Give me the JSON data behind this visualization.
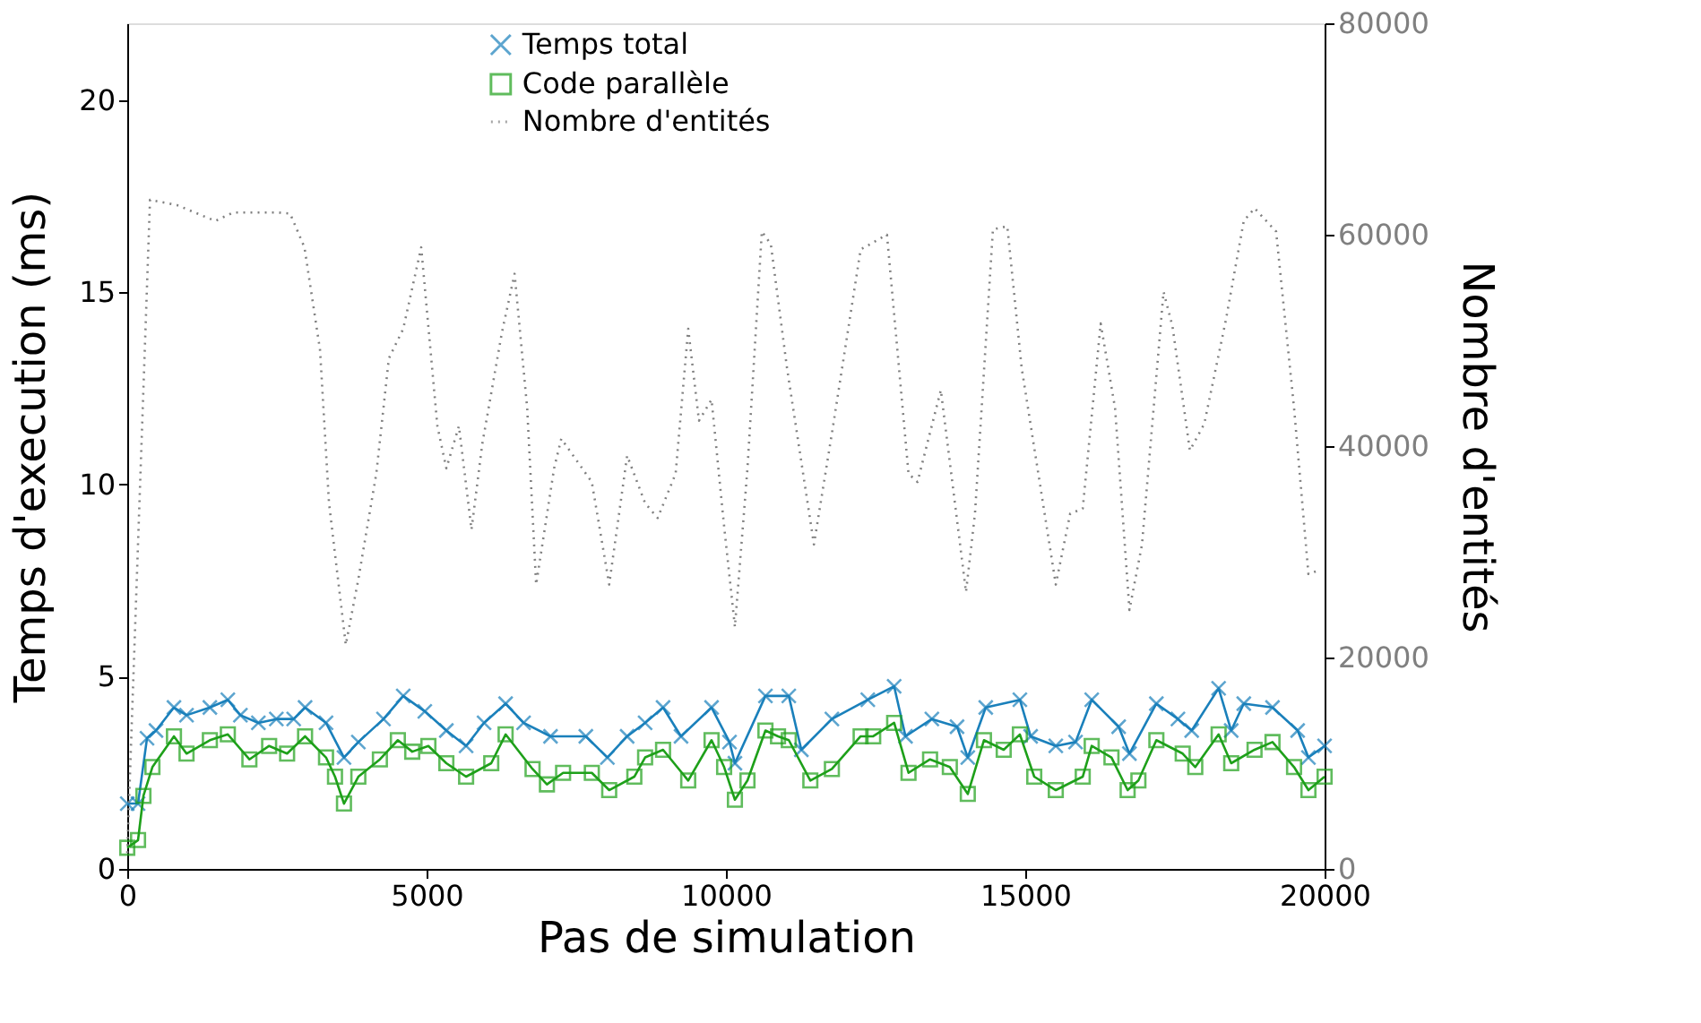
{
  "chart_data": {
    "type": "line",
    "xlabel": "Pas de simulation",
    "ylabel": "Temps d'execution (ms)",
    "y2label": "Nombre d'entités",
    "xlim": [
      0,
      20000
    ],
    "xticks": [
      0,
      5000,
      10000,
      15000,
      20000
    ],
    "ylim": [
      0,
      22
    ],
    "yticks": [
      0,
      5,
      10,
      15,
      20
    ],
    "y2lim": [
      0,
      80000
    ],
    "y2ticks": [
      0,
      20000,
      40000,
      60000,
      80000
    ],
    "grid": false,
    "legend": "top",
    "series": [
      {
        "name": "Temps total",
        "color": "#1a80bb",
        "marker": "cross",
        "line_style": "solid",
        "x": [
          0,
          180,
          330,
          480,
          780,
          990,
          1380,
          1680,
          1890,
          2190,
          2490,
          2780,
          2970,
          3320,
          3620,
          3860,
          4280,
          4610,
          4970,
          5330,
          5660,
          5960,
          6320,
          6620,
          7070,
          7660,
          8020,
          8350,
          8650,
          8950,
          9250,
          9760,
          10060,
          10150,
          10660,
          11050,
          11260,
          11770,
          12370,
          12810,
          13000,
          13440,
          13860,
          14040,
          14340,
          14910,
          15090,
          15510,
          15840,
          16110,
          16560,
          16740,
          17190,
          17550,
          17780,
          18230,
          18440,
          18650,
          19130,
          19550,
          19730,
          20000
        ],
        "values": [
          1.7,
          1.7,
          3.4,
          3.6,
          4.2,
          4.0,
          4.2,
          4.4,
          4.0,
          3.8,
          3.9,
          3.9,
          4.2,
          3.8,
          2.9,
          3.3,
          3.9,
          4.5,
          4.1,
          3.6,
          3.2,
          3.8,
          4.3,
          3.8,
          3.45,
          3.45,
          2.9,
          3.45,
          3.8,
          4.2,
          3.45,
          4.2,
          3.3,
          2.75,
          4.5,
          4.5,
          3.1,
          3.9,
          4.4,
          4.75,
          3.45,
          3.9,
          3.7,
          2.9,
          4.2,
          4.4,
          3.45,
          3.2,
          3.3,
          4.4,
          3.7,
          3.0,
          4.3,
          3.9,
          3.6,
          4.7,
          3.6,
          4.3,
          4.2,
          3.6,
          2.9,
          3.2
        ]
      },
      {
        "name": "Code parallèle",
        "color": "#1ea01a",
        "marker": "square",
        "line_style": "solid",
        "x": [
          0,
          180,
          270,
          420,
          780,
          990,
          1380,
          1680,
          2040,
          2370,
          2670,
          2970,
          3320,
          3470,
          3620,
          3860,
          4220,
          4520,
          4760,
          5030,
          5330,
          5660,
          6080,
          6320,
          6770,
          7010,
          7280,
          7760,
          8050,
          8470,
          8650,
          8950,
          9370,
          9760,
          9970,
          10150,
          10360,
          10660,
          10870,
          11050,
          11410,
          11770,
          12250,
          12460,
          12810,
          13050,
          13410,
          13740,
          14040,
          14310,
          14640,
          14910,
          15150,
          15510,
          15960,
          16110,
          16440,
          16710,
          16890,
          17190,
          17630,
          17840,
          18230,
          18440,
          18830,
          19130,
          19490,
          19730,
          20000
        ],
        "values": [
          0.55,
          0.75,
          1.9,
          2.65,
          3.45,
          3.0,
          3.35,
          3.5,
          2.85,
          3.2,
          3.0,
          3.45,
          2.9,
          2.4,
          1.7,
          2.4,
          2.85,
          3.35,
          3.05,
          3.2,
          2.75,
          2.4,
          2.75,
          3.5,
          2.6,
          2.2,
          2.5,
          2.5,
          2.05,
          2.4,
          2.9,
          3.1,
          2.3,
          3.35,
          2.65,
          1.8,
          2.3,
          3.6,
          3.45,
          3.35,
          2.3,
          2.6,
          3.45,
          3.45,
          3.8,
          2.5,
          2.85,
          2.65,
          1.95,
          3.35,
          3.1,
          3.5,
          2.4,
          2.05,
          2.4,
          3.2,
          2.9,
          2.05,
          2.3,
          3.35,
          3.0,
          2.65,
          3.5,
          2.75,
          3.1,
          3.3,
          2.65,
          2.05,
          2.4
        ]
      },
      {
        "name": "Nombre d'entités",
        "color": "#808080",
        "marker": "none",
        "line_style": "dotted",
        "axis": "y2",
        "x": [
          0,
          380,
          830,
          1470,
          1770,
          2510,
          2720,
          2960,
          3220,
          3370,
          3650,
          3860,
          4160,
          4370,
          4610,
          4910,
          5180,
          5330,
          5540,
          5750,
          5930,
          6260,
          6470,
          6680,
          6830,
          7130,
          7250,
          7760,
          8050,
          8350,
          8650,
          8860,
          9160,
          9370,
          9550,
          9760,
          9970,
          10150,
          10360,
          10600,
          10750,
          11020,
          11470,
          11770,
          12250,
          12690,
          13050,
          13200,
          13590,
          14010,
          14160,
          14460,
          14700,
          14940,
          15510,
          15750,
          15960,
          16260,
          16500,
          16740,
          16950,
          17310,
          17460,
          17750,
          17990,
          18350,
          18650,
          18830,
          19190,
          19490,
          19730,
          19880
        ],
        "values": [
          1500,
          63300,
          62800,
          61300,
          62100,
          62100,
          62000,
          58800,
          49100,
          34600,
          21200,
          27400,
          37400,
          48300,
          51100,
          58800,
          41900,
          37900,
          41900,
          32100,
          40200,
          50800,
          56300,
          43600,
          26900,
          37900,
          40700,
          36600,
          26900,
          39100,
          34600,
          33200,
          37400,
          51100,
          42400,
          44400,
          32400,
          22900,
          37900,
          60300,
          59100,
          47400,
          30700,
          41200,
          58600,
          60000,
          37400,
          36600,
          45300,
          26200,
          33600,
          60500,
          60800,
          47400,
          26900,
          33600,
          34100,
          51600,
          43600,
          24500,
          30700,
          54600,
          51300,
          39600,
          42100,
          51900,
          61300,
          62500,
          60300,
          43600,
          27900,
          28200
        ]
      }
    ]
  }
}
